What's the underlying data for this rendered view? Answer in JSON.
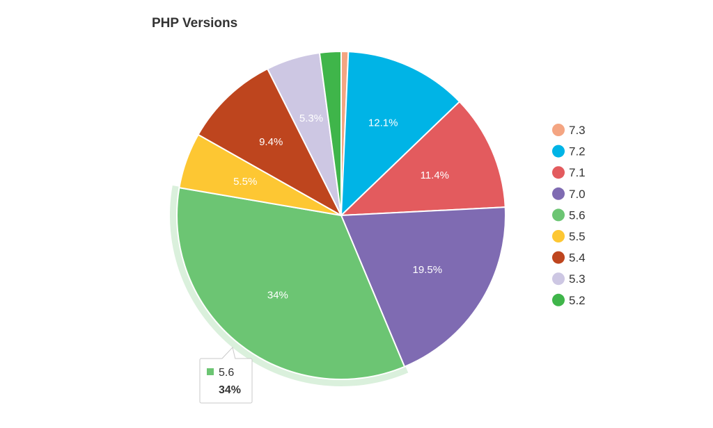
{
  "chart_data": {
    "type": "pie",
    "title": "PHP Versions",
    "slices": [
      {
        "name": "7.3",
        "value": 0.7,
        "label": "",
        "color": "#f4a582"
      },
      {
        "name": "7.2",
        "value": 12.1,
        "label": "12.1%",
        "color": "#00b4e6"
      },
      {
        "name": "7.1",
        "value": 11.4,
        "label": "11.4%",
        "color": "#e35b5e"
      },
      {
        "name": "7.0",
        "value": 19.5,
        "label": "19.5%",
        "color": "#7f6bb2"
      },
      {
        "name": "5.6",
        "value": 34,
        "label": "34%",
        "color": "#6cc573"
      },
      {
        "name": "5.5",
        "value": 5.5,
        "label": "5.5%",
        "color": "#fdc733"
      },
      {
        "name": "5.4",
        "value": 9.4,
        "label": "9.4%",
        "color": "#be451e"
      },
      {
        "name": "5.3",
        "value": 5.3,
        "label": "5.3%",
        "color": "#cdc7e3"
      },
      {
        "name": "5.2",
        "value": 2.1,
        "label": "",
        "color": "#3fb54a"
      }
    ],
    "legend_position": "right",
    "hovered": "5.6",
    "tooltip": {
      "name": "5.6",
      "value": "34%"
    }
  }
}
